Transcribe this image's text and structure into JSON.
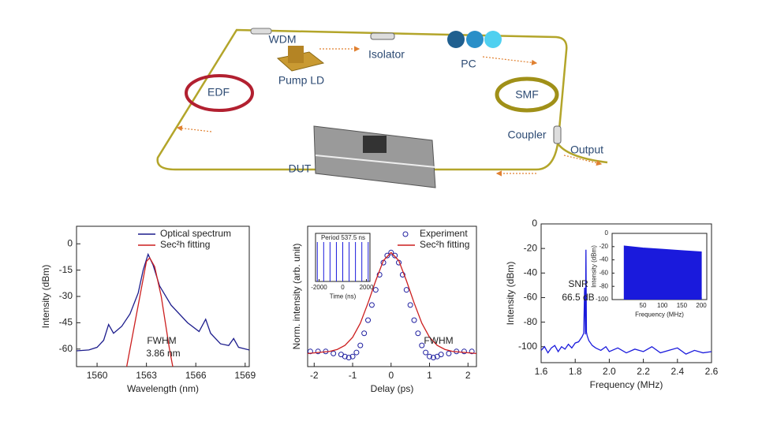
{
  "diagram": {
    "labels": [
      "WDM",
      "Isolator",
      "PC",
      "Pump LD",
      "EDF",
      "SMF",
      "Coupler",
      "Output",
      "DUT"
    ]
  },
  "chart_data": [
    {
      "type": "line",
      "xlabel": "Wavelength (nm)",
      "ylabel": "Intensity (dBm)",
      "xlim": [
        1558.75,
        1569.25
      ],
      "ylim": [
        -70,
        10
      ],
      "xticks": [
        1560,
        1563,
        1566,
        1569
      ],
      "yticks": [
        0,
        -15,
        -30,
        -45,
        -60
      ],
      "legend": "upper right",
      "annotations": [
        "FWHM",
        "3.86 nm"
      ],
      "series": [
        {
          "name": "Optical spectrum",
          "color": "#1c1c8c",
          "mode": "line",
          "x": [
            1558.75,
            1559.5,
            1560,
            1560.4,
            1560.7,
            1561,
            1561.5,
            1562,
            1562.5,
            1562.8,
            1563.1,
            1563.4,
            1563.8,
            1564.5,
            1565.5,
            1566.2,
            1566.6,
            1566.9,
            1567.5,
            1568,
            1568.3,
            1568.6,
            1569.25
          ],
          "values": [
            -61,
            -60.5,
            -59,
            -55,
            -46,
            -51,
            -47,
            -40,
            -28,
            -15,
            -6,
            -12,
            -24,
            -35,
            -45,
            -50,
            -43,
            -51,
            -57,
            -58,
            -54,
            -59,
            -60.5
          ]
        },
        {
          "name": "Sec²h fitting",
          "color": "#cc1f1f",
          "mode": "line",
          "x": [
            1561.8,
            1562.3,
            1562.7,
            1563,
            1563.2,
            1563.5,
            1563.9,
            1564.4,
            1564.6
          ],
          "values": [
            -70,
            -45,
            -25,
            -10,
            -8,
            -13,
            -30,
            -60,
            -70
          ]
        }
      ]
    },
    {
      "type": "line",
      "xlabel": "Delay (ps)",
      "ylabel": "Norm. intensity (arb. unit)",
      "xlim": [
        -2.17,
        2.22
      ],
      "ylim": [
        -0.13,
        1.26
      ],
      "xticks": [
        -2,
        -1,
        0,
        1,
        2
      ],
      "legend": "upper right",
      "annotations": [
        "FWHM"
      ],
      "series": [
        {
          "name": "Experiment",
          "color": "#2020a0",
          "mode": "markers",
          "x": [
            -2.1,
            -1.9,
            -1.7,
            -1.5,
            -1.3,
            -1.2,
            -1.1,
            -1.0,
            -0.9,
            -0.8,
            -0.7,
            -0.6,
            -0.5,
            -0.4,
            -0.3,
            -0.2,
            -0.1,
            0,
            0.1,
            0.2,
            0.3,
            0.4,
            0.5,
            0.6,
            0.7,
            0.8,
            0.9,
            1.0,
            1.1,
            1.2,
            1.3,
            1.5,
            1.7,
            1.9,
            2.1
          ],
          "values": [
            0.02,
            0.02,
            0.02,
            0.0,
            -0.01,
            -0.03,
            -0.04,
            -0.03,
            0.01,
            0.08,
            0.2,
            0.33,
            0.48,
            0.63,
            0.78,
            0.9,
            0.97,
            1,
            0.97,
            0.9,
            0.78,
            0.63,
            0.48,
            0.33,
            0.2,
            0.08,
            0.01,
            -0.03,
            -0.04,
            -0.03,
            -0.01,
            0.0,
            0.02,
            0.02,
            0.02
          ]
        },
        {
          "name": "Sec²h fitting",
          "color": "#cc1f1f",
          "mode": "line",
          "x": [
            -2.17,
            -1.6,
            -1.4,
            -1.2,
            -1.0,
            -0.8,
            -0.6,
            -0.4,
            -0.2,
            0,
            0.2,
            0.4,
            0.6,
            0.8,
            1.0,
            1.2,
            1.4,
            1.6,
            2.22
          ],
          "values": [
            0.0,
            0.02,
            0.04,
            0.08,
            0.16,
            0.3,
            0.5,
            0.72,
            0.92,
            1,
            0.92,
            0.72,
            0.5,
            0.3,
            0.16,
            0.08,
            0.04,
            0.02,
            0.0
          ]
        }
      ]
    },
    {
      "type": "line",
      "xlabel": "Frequency (MHz)",
      "ylabel": "Intensity (dBm)",
      "xlim": [
        1.6,
        2.6
      ],
      "ylim": [
        -113,
        0
      ],
      "xticks": [
        1.6,
        1.8,
        {
          "value": 2,
          "label": "2.0"
        },
        2.2,
        2.4,
        2.6
      ],
      "yticks": [
        0,
        -20,
        -40,
        -60,
        -80,
        -100
      ],
      "annotations": [
        "SNR",
        "66.5 dB"
      ],
      "series": [
        {
          "color": "#1a1adc",
          "mode": "line",
          "x": [
            1.6,
            1.62,
            1.64,
            1.66,
            1.68,
            1.7,
            1.72,
            1.74,
            1.76,
            1.78,
            1.8,
            1.82,
            1.84,
            1.85,
            1.855,
            1.86,
            1.863,
            1.866,
            1.87,
            1.88,
            1.9,
            1.92,
            1.95,
            1.98,
            2.0,
            2.05,
            2.1,
            2.15,
            2.2,
            2.25,
            2.3,
            2.35,
            2.4,
            2.45,
            2.5,
            2.55,
            2.6
          ],
          "values": [
            -103,
            -100,
            -105,
            -101,
            -99,
            -104,
            -100,
            -102,
            -98,
            -101,
            -97,
            -96,
            -92,
            -89,
            -52,
            -90,
            -21,
            -88,
            -91,
            -95,
            -99,
            -101,
            -103,
            -100,
            -104,
            -101,
            -105,
            -102,
            -104,
            -100,
            -105,
            -103,
            -101,
            -106,
            -103,
            -105,
            -104
          ]
        }
      ]
    },
    {
      "type": "stem",
      "xlabel": "Time (ns)",
      "xlim": [
        -2300,
        2300
      ],
      "ylim": [
        0,
        1
      ],
      "xticks": [
        -2000,
        0,
        2000
      ],
      "annotations": [
        "Period  537.5 ns"
      ],
      "series": [
        {
          "color": "#1a1adc",
          "x": [
            -2150,
            -1612.5,
            -1075,
            -537.5,
            0,
            537.5,
            1075,
            1612.5,
            2150
          ],
          "values": [
            0.82,
            0.82,
            0.82,
            0.82,
            0.82,
            0.82,
            0.82,
            0.82,
            0.82
          ]
        }
      ]
    },
    {
      "type": "area",
      "xlabel": "Frequency (MHz)",
      "ylabel": "Intensity (dBm)",
      "xlim": [
        -29,
        214
      ],
      "ylim": [
        -100,
        0
      ],
      "xticks": [
        50,
        100,
        150,
        200
      ],
      "yticks": [
        0,
        -20,
        -40,
        -60,
        -80,
        -100
      ],
      "series": [
        {
          "color": "#1a1adc",
          "x": [
            2,
            50,
            100,
            150,
            200
          ],
          "values": [
            -19,
            -22,
            -24,
            -26,
            -28
          ]
        }
      ]
    }
  ]
}
